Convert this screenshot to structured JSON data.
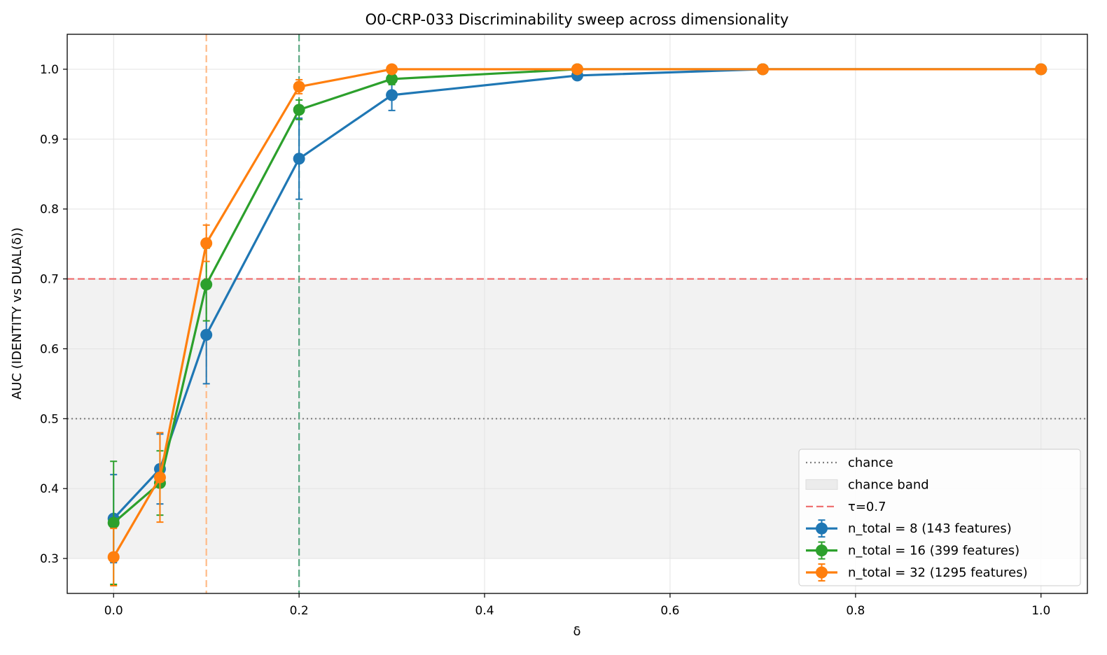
{
  "chart_data": {
    "type": "line",
    "title": "O0-CRP-033  Discriminability sweep across dimensionality",
    "xlabel": "δ",
    "ylabel": "AUC (IDENTITY vs DUAL(δ))",
    "xlim": [
      -0.05,
      1.05
    ],
    "ylim": [
      0.25,
      1.05
    ],
    "x_ticks": [
      0.0,
      0.2,
      0.4,
      0.6,
      0.8,
      1.0
    ],
    "x_tick_labels": [
      "0.0",
      "0.2",
      "0.4",
      "0.6",
      "0.8",
      "1.0"
    ],
    "y_ticks": [
      0.3,
      0.4,
      0.5,
      0.6,
      0.7,
      0.8,
      0.9,
      1.0
    ],
    "y_tick_labels": [
      "0.3",
      "0.4",
      "0.5",
      "0.6",
      "0.7",
      "0.8",
      "0.9",
      "1.0"
    ],
    "grid": true,
    "legend_position": "lower-right",
    "chance": {
      "label": "chance",
      "value": 0.5,
      "color": "#808080"
    },
    "chance_band": {
      "label": "chance band",
      "range": [
        0.3,
        0.7
      ],
      "color": "#f2f2f2"
    },
    "threshold": {
      "label": "τ=0.7",
      "value": 0.7,
      "color": "#ee6a6a"
    },
    "vlines": [
      {
        "x": 0.1,
        "color": "#ffbb88"
      },
      {
        "x": 0.2,
        "color": "#5aa882"
      }
    ],
    "x": [
      0.0,
      0.05,
      0.1,
      0.2,
      0.3,
      0.5,
      0.7,
      1.0
    ],
    "series": [
      {
        "name": "n_total = 8  (143 features)",
        "color": "#1f77b4",
        "values": [
          0.357,
          0.428,
          0.62,
          0.872,
          0.963,
          0.991,
          1.0,
          1.0
        ],
        "errors": [
          0.063,
          0.05,
          0.07,
          0.058,
          0.022,
          0.004,
          0.0,
          0.0
        ]
      },
      {
        "name": "n_total = 16  (399 features)",
        "color": "#2ca02c",
        "values": [
          0.351,
          0.408,
          0.692,
          0.942,
          0.986,
          1.0,
          1.0,
          1.0
        ],
        "errors": [
          0.088,
          0.046,
          0.052,
          0.014,
          0.008,
          0.0,
          0.0,
          0.0
        ]
      },
      {
        "name": "n_total = 32  (1295 features)",
        "color": "#ff7f0e",
        "values": [
          0.302,
          0.416,
          0.751,
          0.975,
          1.0,
          1.0,
          1.0,
          1.0
        ],
        "errors": [
          0.041,
          0.064,
          0.026,
          0.01,
          0.0,
          0.0,
          0.0,
          0.0
        ]
      }
    ]
  }
}
